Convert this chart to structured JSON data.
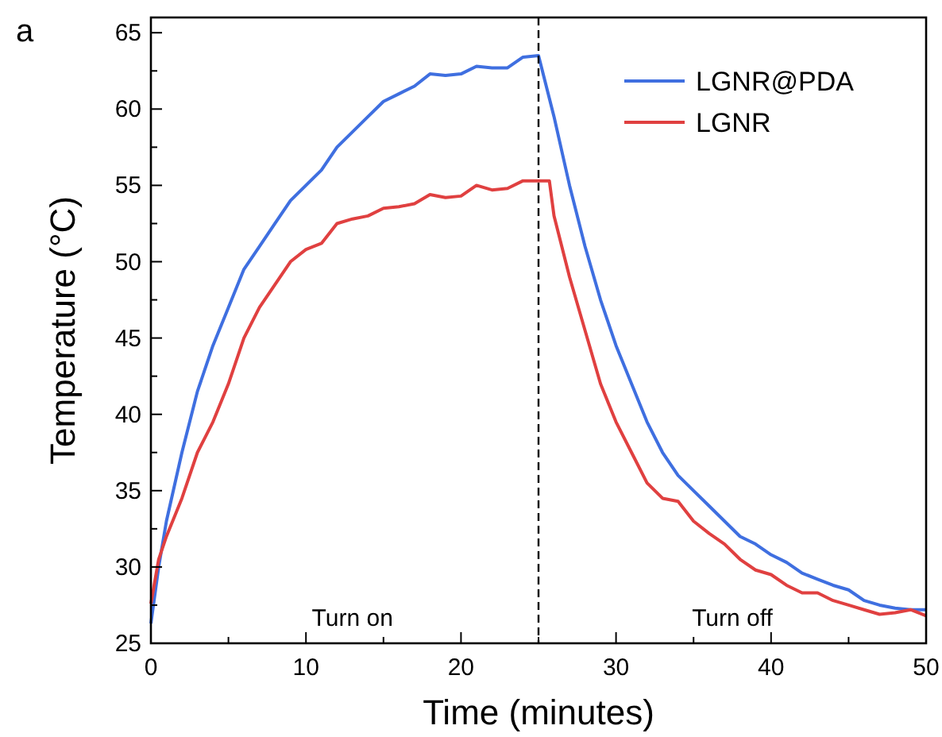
{
  "chart_data": {
    "type": "line",
    "xlabel": "Time (minutes)",
    "ylabel": "Temperature (°C)",
    "xlim": [
      0,
      50
    ],
    "ylim": [
      25,
      66
    ],
    "xticks": [
      0,
      10,
      20,
      30,
      40,
      50
    ],
    "yticks": [
      25,
      30,
      35,
      40,
      45,
      50,
      55,
      60,
      65
    ],
    "grid": false,
    "legend": "top right",
    "line_style": "solid",
    "series": [
      {
        "name": "LGNR@PDA",
        "color": "#3f6fe0",
        "x": [
          0,
          0.5,
          1,
          2,
          3,
          4,
          5,
          6,
          7,
          8,
          9,
          10,
          11,
          12,
          13,
          14,
          15,
          16,
          17,
          18,
          19,
          20,
          21,
          22,
          23,
          24,
          25,
          26,
          27,
          28,
          29,
          30,
          31,
          32,
          33,
          34,
          35,
          36,
          37,
          38,
          39,
          40,
          41,
          42,
          43,
          44,
          45,
          46,
          47,
          48,
          49,
          50
        ],
        "values": [
          26.3,
          30,
          33,
          37.5,
          41.5,
          44.5,
          47,
          49.5,
          51,
          52.5,
          54,
          55,
          56,
          57.5,
          58.5,
          59.5,
          60.5,
          61,
          61.5,
          62.3,
          62.2,
          62.3,
          62.8,
          62.7,
          62.7,
          63.4,
          63.5,
          59.5,
          55,
          51,
          47.5,
          44.5,
          42,
          39.5,
          37.5,
          36,
          35,
          34,
          33,
          32,
          31.5,
          30.8,
          30.3,
          29.6,
          29.2,
          28.8,
          28.5,
          27.8,
          27.5,
          27.3,
          27.2,
          27.2
        ]
      },
      {
        "name": "LGNR",
        "color": "#e04040",
        "x": [
          0,
          0.5,
          1,
          2,
          3,
          4,
          5,
          6,
          7,
          8,
          9,
          10,
          11,
          12,
          13,
          14,
          15,
          16,
          17,
          18,
          19,
          20,
          21,
          22,
          23,
          24,
          25,
          25.7,
          26,
          27,
          28,
          29,
          30,
          31,
          32,
          33,
          34,
          35,
          36,
          37,
          38,
          39,
          40,
          41,
          42,
          43,
          44,
          45,
          46,
          47,
          48,
          49,
          50
        ],
        "values": [
          27.6,
          30.5,
          32,
          34.5,
          37.5,
          39.5,
          42,
          45,
          47,
          48.5,
          50,
          50.8,
          51.2,
          52.5,
          52.8,
          53,
          53.5,
          53.6,
          53.8,
          54.4,
          54.2,
          54.3,
          55,
          54.7,
          54.8,
          55.3,
          55.3,
          55.3,
          53,
          49,
          45.5,
          42,
          39.5,
          37.5,
          35.5,
          34.5,
          34.3,
          33,
          32.2,
          31.5,
          30.5,
          29.8,
          29.5,
          28.8,
          28.3,
          28.3,
          27.8,
          27.5,
          27.2,
          26.9,
          27,
          27.2,
          26.8
        ]
      }
    ],
    "ref_lines": [
      {
        "axis": "x",
        "value": 25,
        "line_style": "dashed",
        "color": "#000000"
      }
    ],
    "annotations": [
      "a",
      "Turn on",
      "Turn off"
    ]
  }
}
